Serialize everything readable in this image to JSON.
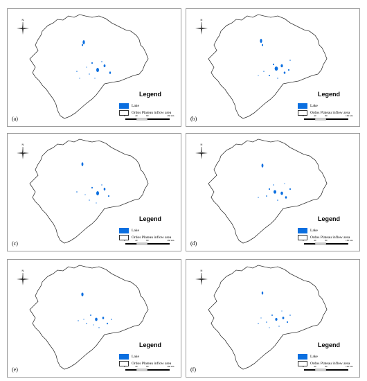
{
  "north_arrow": {
    "letter": "N",
    "icon": "compass-rose-icon"
  },
  "legend": {
    "title": "Legend",
    "items": [
      {
        "label": "Lake",
        "color": "#0b6fe0"
      },
      {
        "label": "Ordos Plateau inflow area",
        "color": "#ffffff"
      }
    ]
  },
  "scale_bar": {
    "ticks": [
      "0",
      "40",
      "80",
      "160"
    ],
    "unit": "km"
  },
  "panels": [
    {
      "label": "(a)"
    },
    {
      "label": "(b)"
    },
    {
      "label": "(c)"
    },
    {
      "label": "(d)"
    },
    {
      "label": "(e)"
    },
    {
      "label": "(f)"
    }
  ],
  "colors": {
    "lake": "#0b6fe0",
    "boundary": "#333333",
    "frame": "#9a9a9a"
  }
}
